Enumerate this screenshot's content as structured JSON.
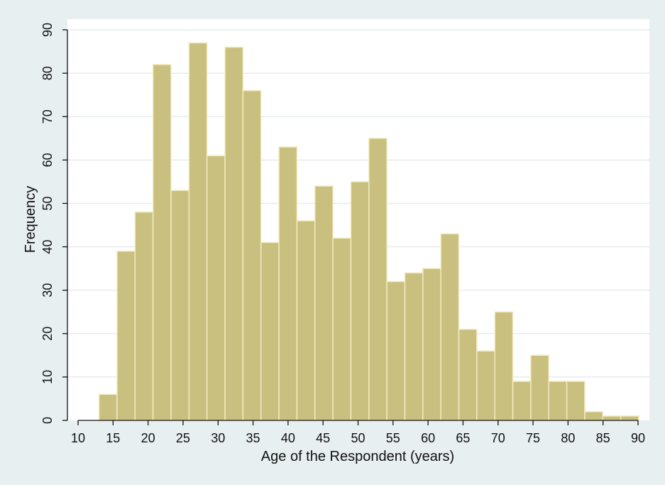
{
  "chart_data": {
    "type": "bar",
    "histogram": true,
    "title": "",
    "xlabel": "Age of the Respondent (years)",
    "ylabel": "Frequency",
    "xlim": [
      10,
      90
    ],
    "ylim": [
      0,
      90
    ],
    "xticks": [
      10,
      15,
      20,
      25,
      30,
      35,
      40,
      45,
      50,
      55,
      60,
      65,
      70,
      75,
      80,
      85,
      90
    ],
    "yticks": [
      0,
      10,
      20,
      30,
      40,
      50,
      60,
      70,
      80,
      90
    ],
    "grid": true,
    "legend": "none",
    "bin_start": 13,
    "bin_width": 2.57,
    "values": [
      6,
      39,
      48,
      82,
      53,
      87,
      61,
      86,
      76,
      41,
      63,
      46,
      54,
      42,
      55,
      65,
      32,
      34,
      35,
      43,
      21,
      16,
      25,
      9,
      15,
      9,
      9,
      2,
      1,
      1
    ],
    "colors": {
      "bar_fill": "#c9bf7f",
      "bar_edge": "#f2ecc0",
      "plot_background": "#ffffff",
      "outer_background": "#e8eff1",
      "gridline": "#e6ecef"
    }
  }
}
